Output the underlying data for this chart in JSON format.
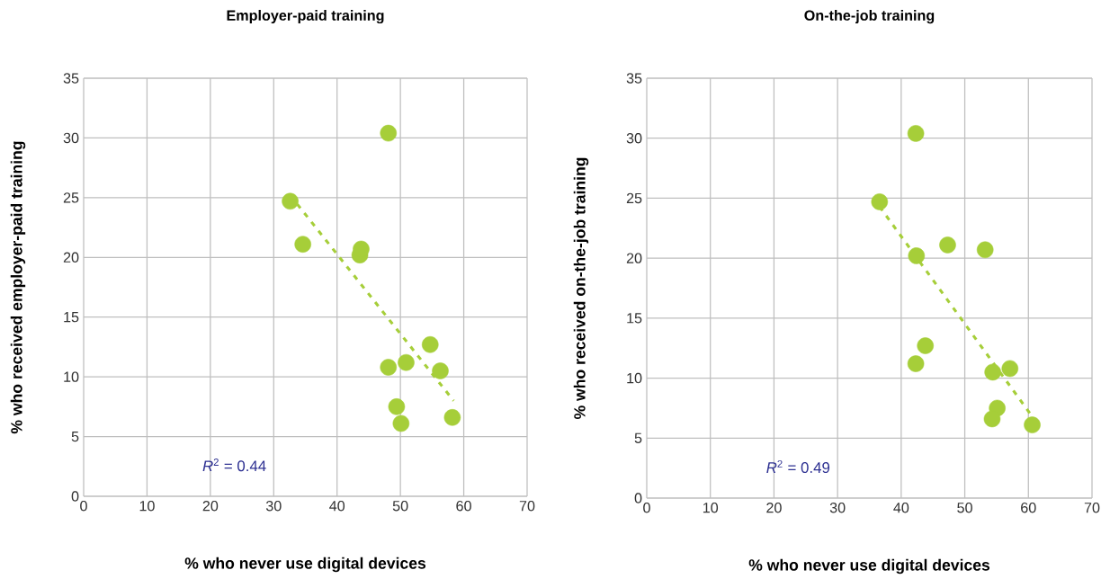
{
  "chart_data": [
    {
      "type": "scatter",
      "title": "Employer-paid training",
      "xlabel": "% who never use digital devices",
      "ylabel": "% who received employer-paid training",
      "xlim": [
        0,
        70
      ],
      "ylim": [
        0,
        35
      ],
      "xticks": [
        0,
        10,
        20,
        30,
        40,
        50,
        60,
        70
      ],
      "yticks": [
        0,
        5,
        10,
        15,
        20,
        25,
        30,
        35
      ],
      "grid": true,
      "annotations": [
        "*R*$^{2}$ = 0.44"
      ],
      "series": [
        {
          "type": "scatter",
          "color": "#a6ce39",
          "marker": "circle",
          "x": [
            32.6,
            34.6,
            43.6,
            43.8,
            48.1,
            48.1,
            49.4,
            50.1,
            50.9,
            54.7,
            56.3,
            58.2
          ],
          "values": [
            24.7,
            21.1,
            20.2,
            20.7,
            30.4,
            10.8,
            7.5,
            6.1,
            11.2,
            12.7,
            10.5,
            6.6
          ]
        },
        {
          "type": "line",
          "color": "#a6ce39",
          "line_style": "dashed",
          "marker": "none",
          "x": [
            32.6,
            58.4
          ],
          "values": [
            25.2,
            8.0
          ]
        }
      ]
    },
    {
      "type": "scatter",
      "title": "On-the-job training",
      "xlabel": "% who never use digital devices",
      "ylabel": "% who received on-the-job training",
      "xlim": [
        0,
        70
      ],
      "ylim": [
        0,
        35
      ],
      "xticks": [
        0,
        10,
        20,
        30,
        40,
        50,
        60,
        70
      ],
      "yticks": [
        0,
        5,
        10,
        15,
        20,
        25,
        30,
        35
      ],
      "grid": true,
      "annotations": [
        "*R*$^{2}$ = 0.49"
      ],
      "series": [
        {
          "type": "scatter",
          "color": "#a6ce39",
          "marker": "circle",
          "x": [
            36.6,
            42.3,
            42.4,
            42.3,
            43.8,
            47.3,
            53.2,
            54.4,
            57.1,
            55.1,
            54.3,
            60.6
          ],
          "values": [
            24.7,
            30.4,
            20.2,
            11.2,
            12.7,
            21.1,
            20.7,
            10.5,
            10.8,
            7.5,
            6.6,
            6.1
          ]
        },
        {
          "type": "line",
          "color": "#a6ce39",
          "line_style": "dashed",
          "marker": "none",
          "x": [
            36.6,
            60.6
          ],
          "values": [
            24.3,
            6.8
          ]
        }
      ]
    }
  ]
}
